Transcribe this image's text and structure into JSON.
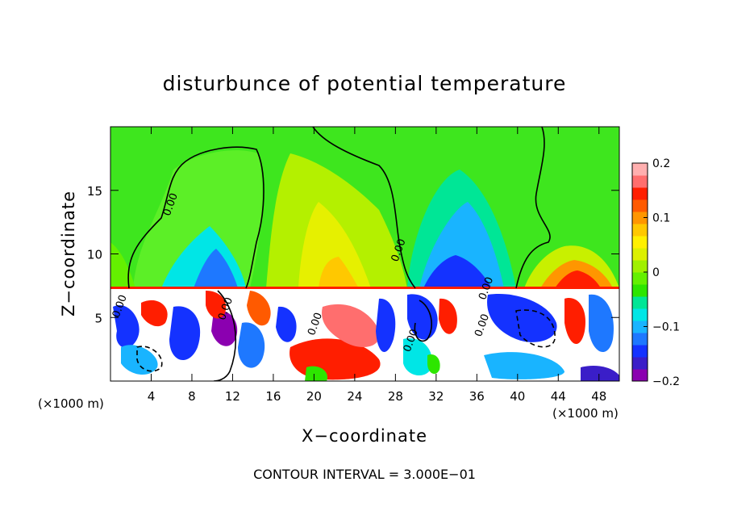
{
  "chart_data": {
    "type": "heatmap",
    "title": "disturbunce of potential temperature",
    "xlabel": "X−coordinate",
    "ylabel": "Z−coordinate",
    "x_unit_left": "(×1000 m)",
    "x_unit_right": "(×1000 m)",
    "footer": "CONTOUR INTERVAL = 3.000E−01",
    "xlim": [
      0,
      50
    ],
    "ylim": [
      0,
      20
    ],
    "x_ticks": [
      4,
      8,
      12,
      16,
      20,
      24,
      28,
      32,
      36,
      40,
      44,
      48
    ],
    "y_ticks": [
      5,
      10,
      15
    ],
    "colorbar": {
      "vmin": -0.2,
      "vmax": 0.2,
      "ticks": [
        {
          "value": 0.2,
          "label": "0.2"
        },
        {
          "value": 0.1,
          "label": "0.1"
        },
        {
          "value": 0,
          "label": "0"
        },
        {
          "value": -0.1,
          "label": "−0.1"
        },
        {
          "value": -0.2,
          "label": "−0.2"
        }
      ],
      "colors": [
        "#8b00b0",
        "#3a1ec8",
        "#1432ff",
        "#1e78ff",
        "#19b4ff",
        "#00e6e6",
        "#00e696",
        "#2de600",
        "#64f000",
        "#a0f000",
        "#dcf000",
        "#fff000",
        "#ffc800",
        "#ff9600",
        "#ff5a00",
        "#ff1e00",
        "#ff6e6e",
        "#ffafaf"
      ]
    },
    "contour_labels": [
      {
        "x": 6.2,
        "y": 13.8,
        "text": "0.00"
      },
      {
        "x": 28.6,
        "y": 10.2,
        "text": "0.00"
      },
      {
        "x": 37.2,
        "y": 7.2,
        "text": "0.00"
      },
      {
        "x": 1.2,
        "y": 5.8,
        "text": "0.00"
      },
      {
        "x": 11.6,
        "y": 5.6,
        "text": "0.00"
      },
      {
        "x": 20.4,
        "y": 4.4,
        "text": "0.00"
      },
      {
        "x": 29.8,
        "y": 3.1,
        "text": "0.00"
      },
      {
        "x": 36.8,
        "y": 4.3,
        "text": "0.00"
      }
    ]
  }
}
